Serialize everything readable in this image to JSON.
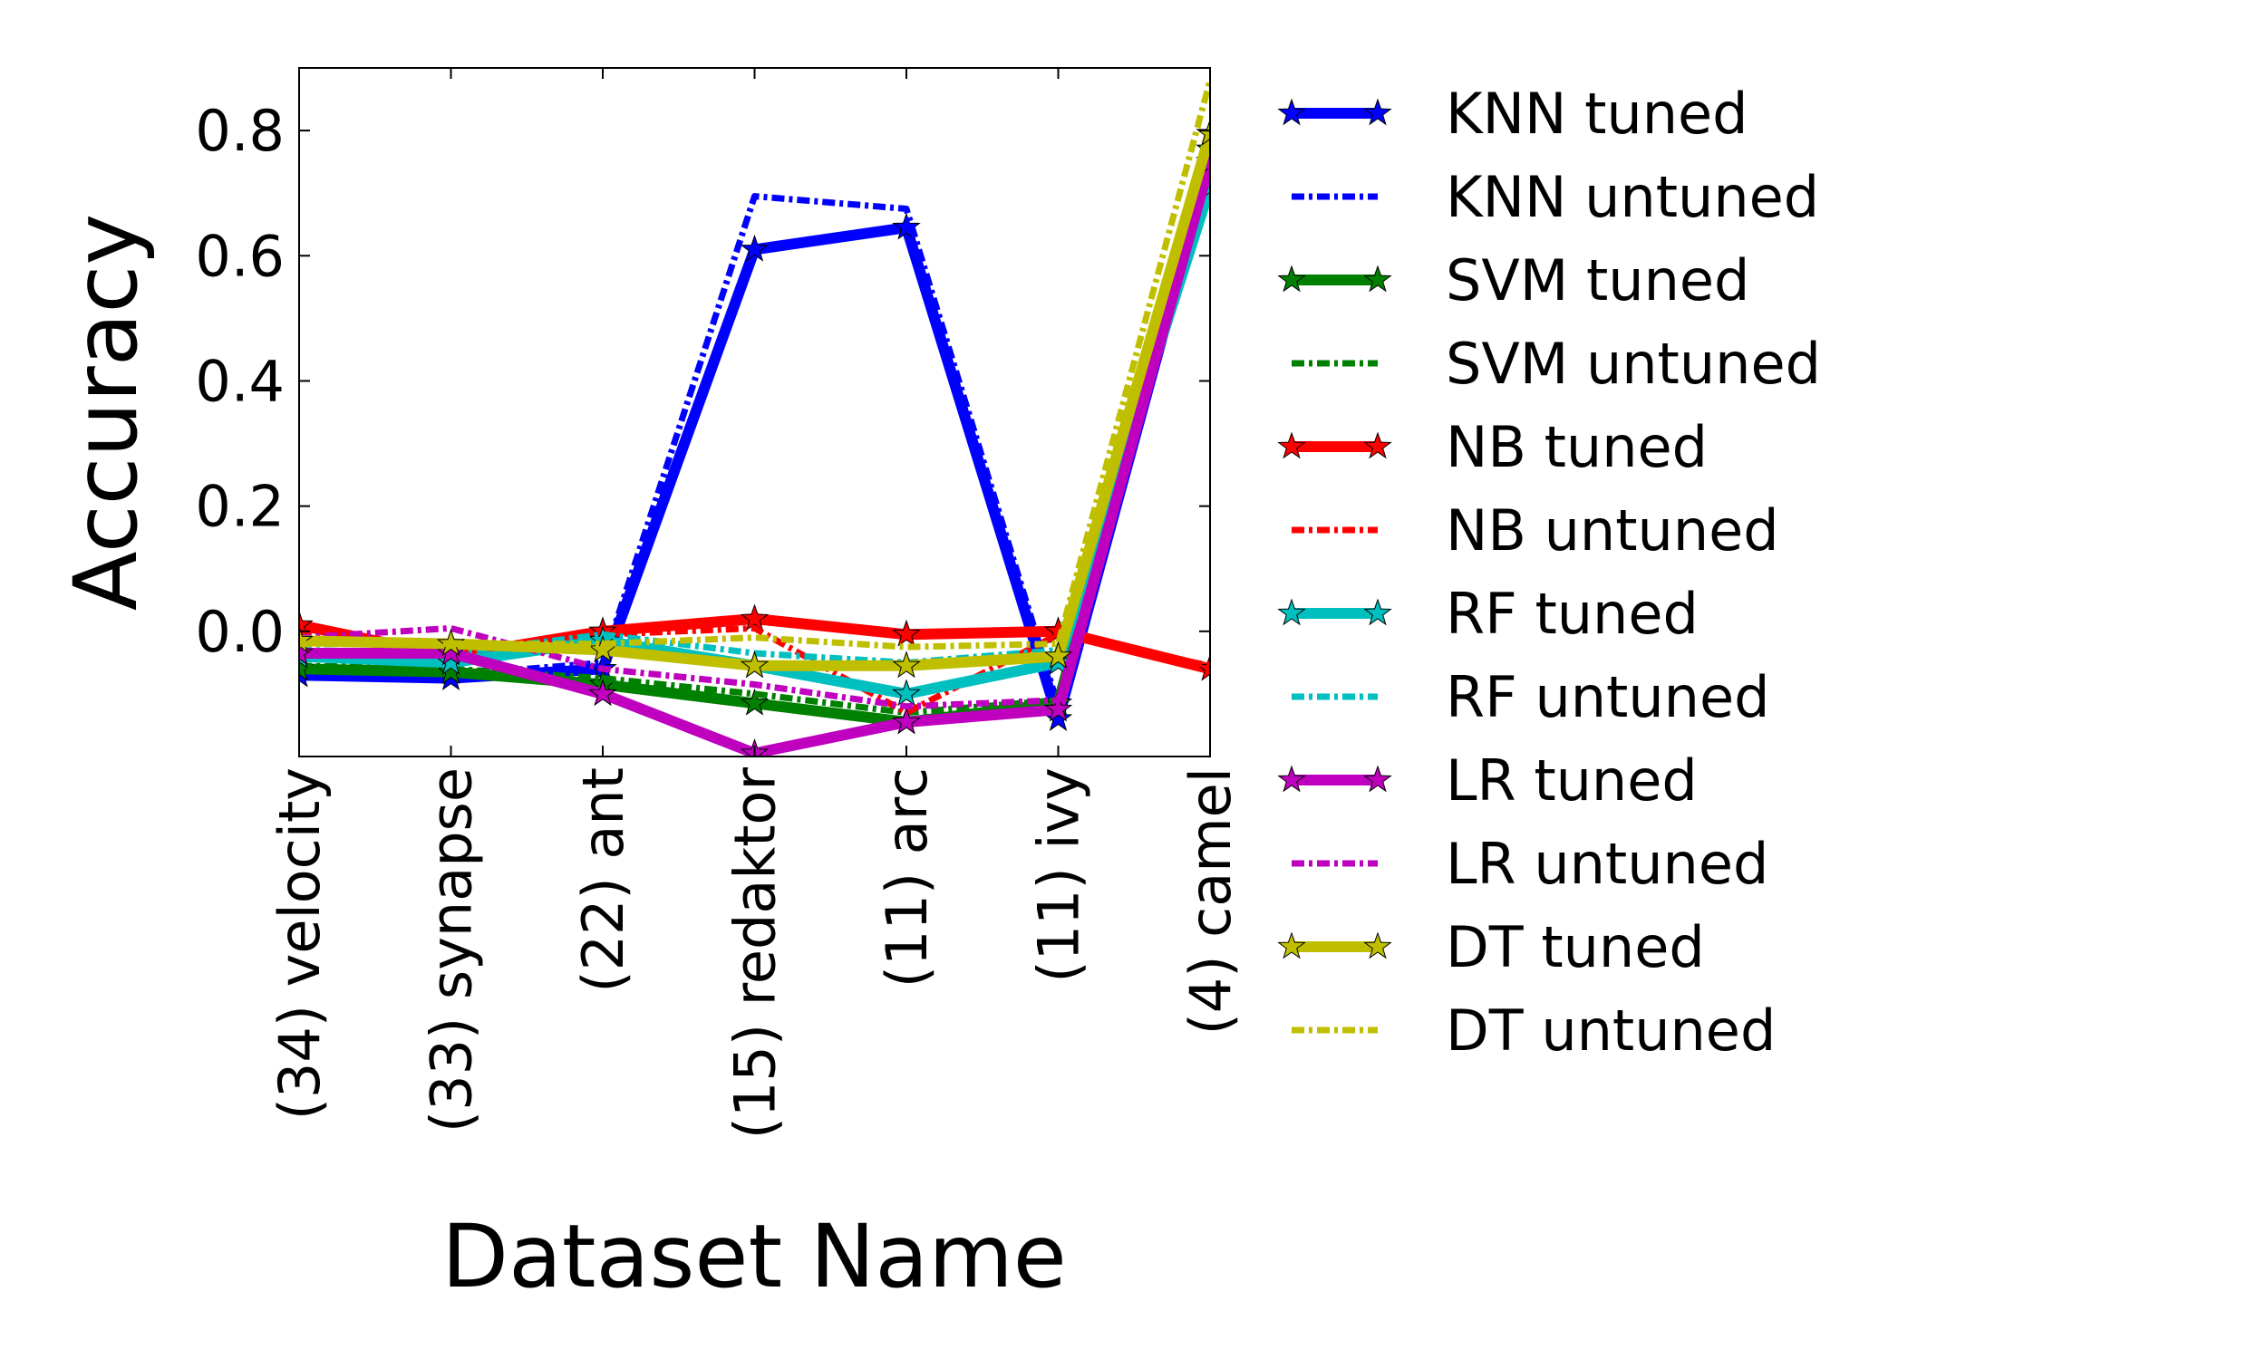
{
  "chart_data": {
    "type": "line",
    "xlabel": "Dataset Name",
    "ylabel": "Accuracy",
    "categories": [
      "(34) velocity",
      "(33) synapse",
      "(22) ant",
      "(15) redaktor",
      "(11) arc",
      "(11) ivy",
      "(4) camel"
    ],
    "ylim": [
      -0.2,
      0.9
    ],
    "yticks": [
      0.0,
      0.2,
      0.4,
      0.6,
      0.8
    ],
    "ytick_labels": [
      "0.0",
      "0.2",
      "0.4",
      "0.6",
      "0.8"
    ],
    "grid": false,
    "legend_position": "right, outside plot",
    "series": [
      {
        "name": "KNN tuned",
        "color": "#0000ff",
        "style": "solid",
        "marker": "star",
        "values": [
          -0.07,
          -0.075,
          -0.06,
          0.61,
          0.645,
          -0.14,
          0.75
        ]
      },
      {
        "name": "KNN untuned",
        "color": "#0000ff",
        "style": "dashdot",
        "marker": "none",
        "values": [
          -0.065,
          -0.07,
          -0.05,
          0.695,
          0.675,
          -0.12,
          0.77
        ]
      },
      {
        "name": "SVM tuned",
        "color": "#008000",
        "style": "solid",
        "marker": "star",
        "values": [
          -0.06,
          -0.065,
          -0.085,
          -0.115,
          -0.145,
          -0.115,
          0.77
        ]
      },
      {
        "name": "SVM untuned",
        "color": "#008000",
        "style": "dashdot",
        "marker": "none",
        "values": [
          -0.055,
          -0.06,
          -0.075,
          -0.1,
          -0.13,
          -0.11,
          0.78
        ]
      },
      {
        "name": "NB tuned",
        "color": "#ff0000",
        "style": "solid",
        "marker": "star",
        "values": [
          0.01,
          -0.04,
          0.0,
          0.02,
          -0.005,
          0.0,
          -0.06
        ]
      },
      {
        "name": "NB untuned",
        "color": "#ff0000",
        "style": "dashdot",
        "marker": "none",
        "values": [
          0.0,
          -0.045,
          -0.005,
          0.005,
          -0.13,
          -0.005,
          -0.055
        ]
      },
      {
        "name": "RF tuned",
        "color": "#00bfbf",
        "style": "solid",
        "marker": "star",
        "values": [
          -0.04,
          -0.05,
          -0.015,
          -0.055,
          -0.1,
          -0.05,
          0.71
        ]
      },
      {
        "name": "RF untuned",
        "color": "#00bfbf",
        "style": "dashdot",
        "marker": "none",
        "values": [
          -0.03,
          -0.035,
          -0.005,
          -0.035,
          -0.05,
          -0.03,
          0.73
        ]
      },
      {
        "name": "LR tuned",
        "color": "#bf00bf",
        "style": "solid",
        "marker": "star",
        "values": [
          -0.035,
          -0.035,
          -0.1,
          -0.195,
          -0.145,
          -0.125,
          0.75
        ]
      },
      {
        "name": "LR untuned",
        "color": "#bf00bf",
        "style": "dashdot",
        "marker": "none",
        "values": [
          -0.01,
          0.005,
          -0.06,
          -0.085,
          -0.12,
          -0.11,
          0.76
        ]
      },
      {
        "name": "DT tuned",
        "color": "#bfbf00",
        "style": "solid",
        "marker": "star",
        "values": [
          -0.015,
          -0.02,
          -0.03,
          -0.055,
          -0.055,
          -0.04,
          0.795
        ]
      },
      {
        "name": "DT untuned",
        "color": "#bfbf00",
        "style": "dashdot",
        "marker": "none",
        "values": [
          -0.02,
          -0.02,
          -0.02,
          -0.01,
          -0.025,
          -0.02,
          0.88
        ]
      }
    ]
  }
}
